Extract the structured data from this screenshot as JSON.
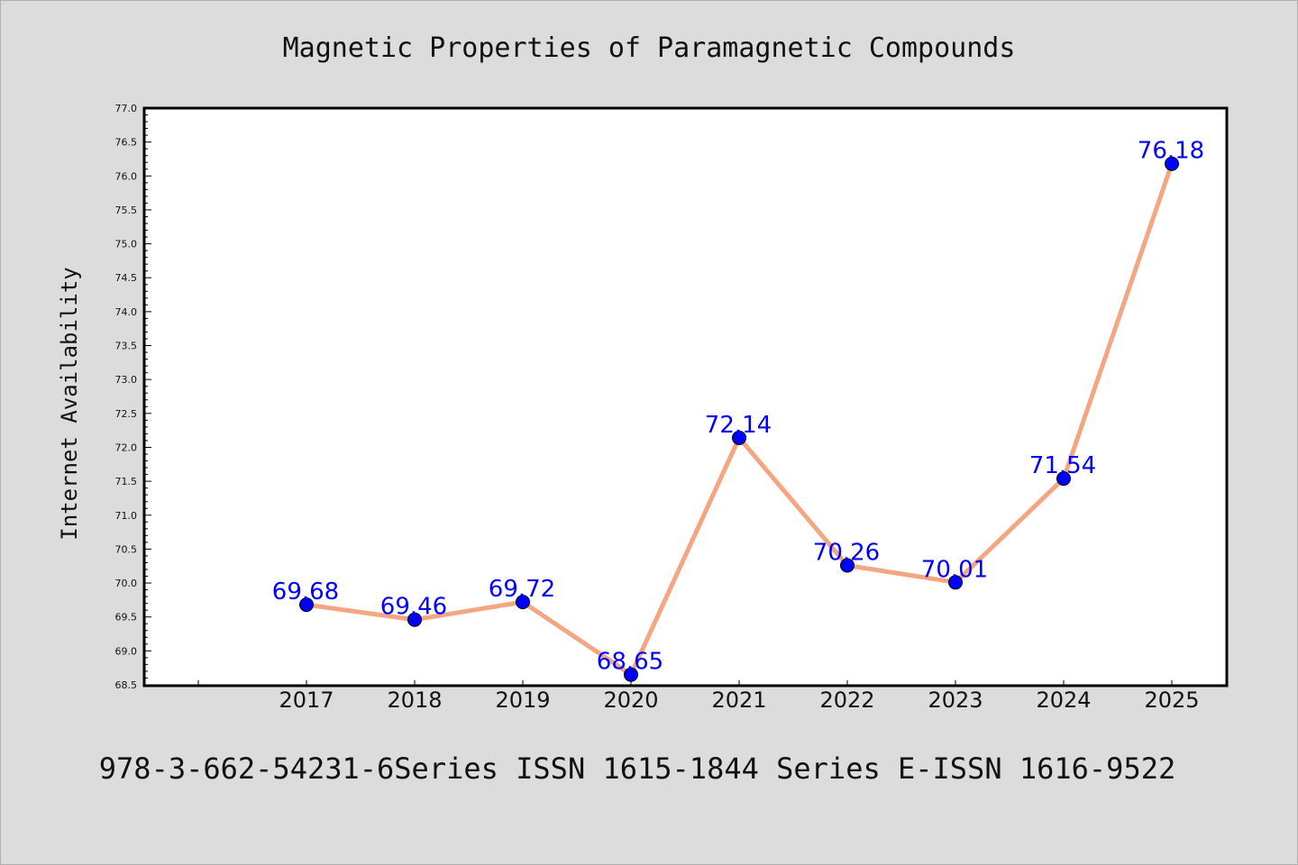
{
  "chart_data": {
    "type": "line",
    "title": "Magnetic Properties of Paramagnetic Compounds",
    "xlabel": "",
    "ylabel": "Internet Availability",
    "x": [
      "2017",
      "2018",
      "2019",
      "2020",
      "2021",
      "2022",
      "2023",
      "2024",
      "2025"
    ],
    "series": [
      {
        "values": [
          69.68,
          69.46,
          69.72,
          68.65,
          72.14,
          70.26,
          70.01,
          71.54,
          76.18
        ]
      }
    ],
    "data_labels": [
      "69.68",
      "69.46",
      "69.72",
      "68.65",
      "72.14",
      "70.26",
      "70.01",
      "71.54",
      "76.18"
    ],
    "ylim": [
      68.5,
      77.0
    ],
    "yticks": [
      "68.5",
      "69.0",
      "69.5",
      "70.0",
      "70.5",
      "71.0",
      "71.5",
      "72.0",
      "72.5",
      "73.0",
      "73.5",
      "74.0",
      "74.5",
      "75.0",
      "75.5",
      "76.0",
      "76.5",
      "77.0"
    ],
    "grid": false,
    "colors": {
      "line": "#f4a582",
      "marker": "#0000ff",
      "data_label": "#0000ff",
      "background": "#dcdcdc",
      "plot_background": "#ffffff"
    }
  },
  "footer_text": "978-3-662-54231-6Series ISSN 1615-1844 Series E-ISSN 1616-9522"
}
